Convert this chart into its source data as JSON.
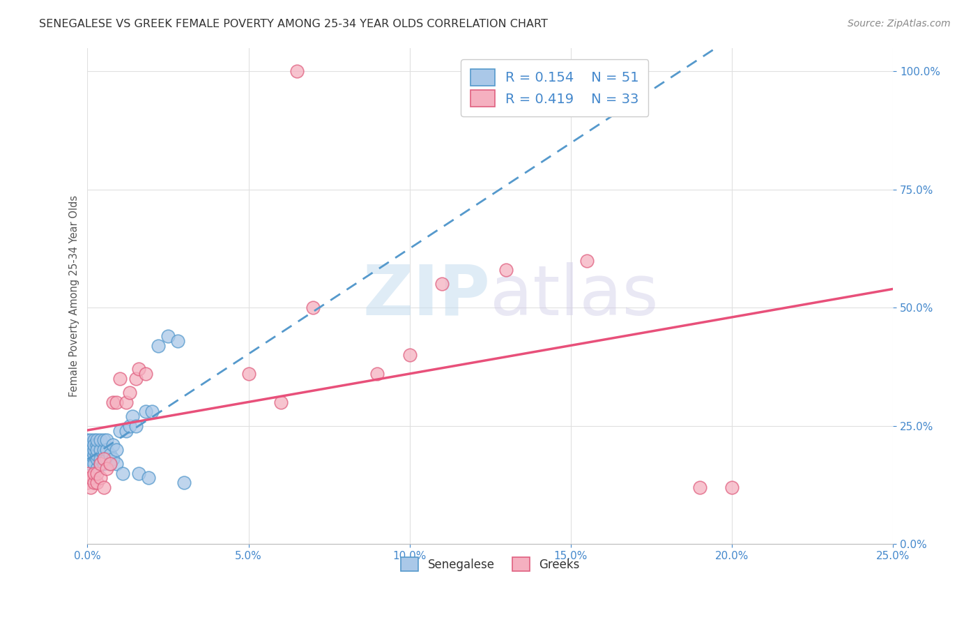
{
  "title": "SENEGALESE VS GREEK FEMALE POVERTY AMONG 25-34 YEAR OLDS CORRELATION CHART",
  "source": "Source: ZipAtlas.com",
  "ylabel": "Female Poverty Among 25-34 Year Olds",
  "xlim": [
    0.0,
    0.25
  ],
  "ylim": [
    0.0,
    1.05
  ],
  "x_ticks": [
    0.0,
    0.05,
    0.1,
    0.15,
    0.2,
    0.25
  ],
  "y_ticks": [
    0.0,
    0.25,
    0.5,
    0.75,
    1.0
  ],
  "watermark_zip": "ZIP",
  "watermark_atlas": "atlas",
  "senegalese_color": "#aac8e8",
  "greek_color": "#f5b0c0",
  "senegalese_edge_color": "#5599cc",
  "greek_edge_color": "#e06080",
  "sen_trend_color": "#5599cc",
  "grk_trend_color": "#e8507a",
  "background_color": "#ffffff",
  "grid_color": "#e0e0e0",
  "tick_color": "#4488cc",
  "senegalese_x": [
    0.0,
    0.0,
    0.0,
    0.0,
    0.0,
    0.001,
    0.001,
    0.001,
    0.001,
    0.002,
    0.002,
    0.002,
    0.002,
    0.002,
    0.003,
    0.003,
    0.003,
    0.003,
    0.003,
    0.003,
    0.004,
    0.004,
    0.004,
    0.004,
    0.005,
    0.005,
    0.005,
    0.005,
    0.006,
    0.006,
    0.006,
    0.007,
    0.007,
    0.008,
    0.008,
    0.009,
    0.009,
    0.01,
    0.011,
    0.012,
    0.013,
    0.014,
    0.015,
    0.016,
    0.018,
    0.019,
    0.02,
    0.022,
    0.025,
    0.028,
    0.03
  ],
  "senegalese_y": [
    0.18,
    0.2,
    0.21,
    0.22,
    0.19,
    0.17,
    0.19,
    0.2,
    0.22,
    0.17,
    0.19,
    0.2,
    0.22,
    0.21,
    0.16,
    0.18,
    0.19,
    0.21,
    0.2,
    0.22,
    0.17,
    0.18,
    0.2,
    0.22,
    0.17,
    0.19,
    0.2,
    0.22,
    0.18,
    0.2,
    0.22,
    0.17,
    0.19,
    0.18,
    0.21,
    0.17,
    0.2,
    0.24,
    0.15,
    0.24,
    0.25,
    0.27,
    0.25,
    0.15,
    0.28,
    0.14,
    0.28,
    0.42,
    0.44,
    0.43,
    0.13
  ],
  "greek_x": [
    0.0,
    0.0,
    0.001,
    0.001,
    0.002,
    0.002,
    0.003,
    0.003,
    0.004,
    0.004,
    0.005,
    0.005,
    0.006,
    0.007,
    0.008,
    0.009,
    0.01,
    0.012,
    0.013,
    0.015,
    0.016,
    0.018,
    0.05,
    0.06,
    0.065,
    0.07,
    0.09,
    0.1,
    0.11,
    0.13,
    0.155,
    0.19,
    0.2
  ],
  "greek_y": [
    0.13,
    0.15,
    0.12,
    0.14,
    0.13,
    0.15,
    0.13,
    0.15,
    0.14,
    0.17,
    0.12,
    0.18,
    0.16,
    0.17,
    0.3,
    0.3,
    0.35,
    0.3,
    0.32,
    0.35,
    0.37,
    0.36,
    0.36,
    0.3,
    1.0,
    0.5,
    0.36,
    0.4,
    0.55,
    0.58,
    0.6,
    0.12,
    0.12
  ]
}
